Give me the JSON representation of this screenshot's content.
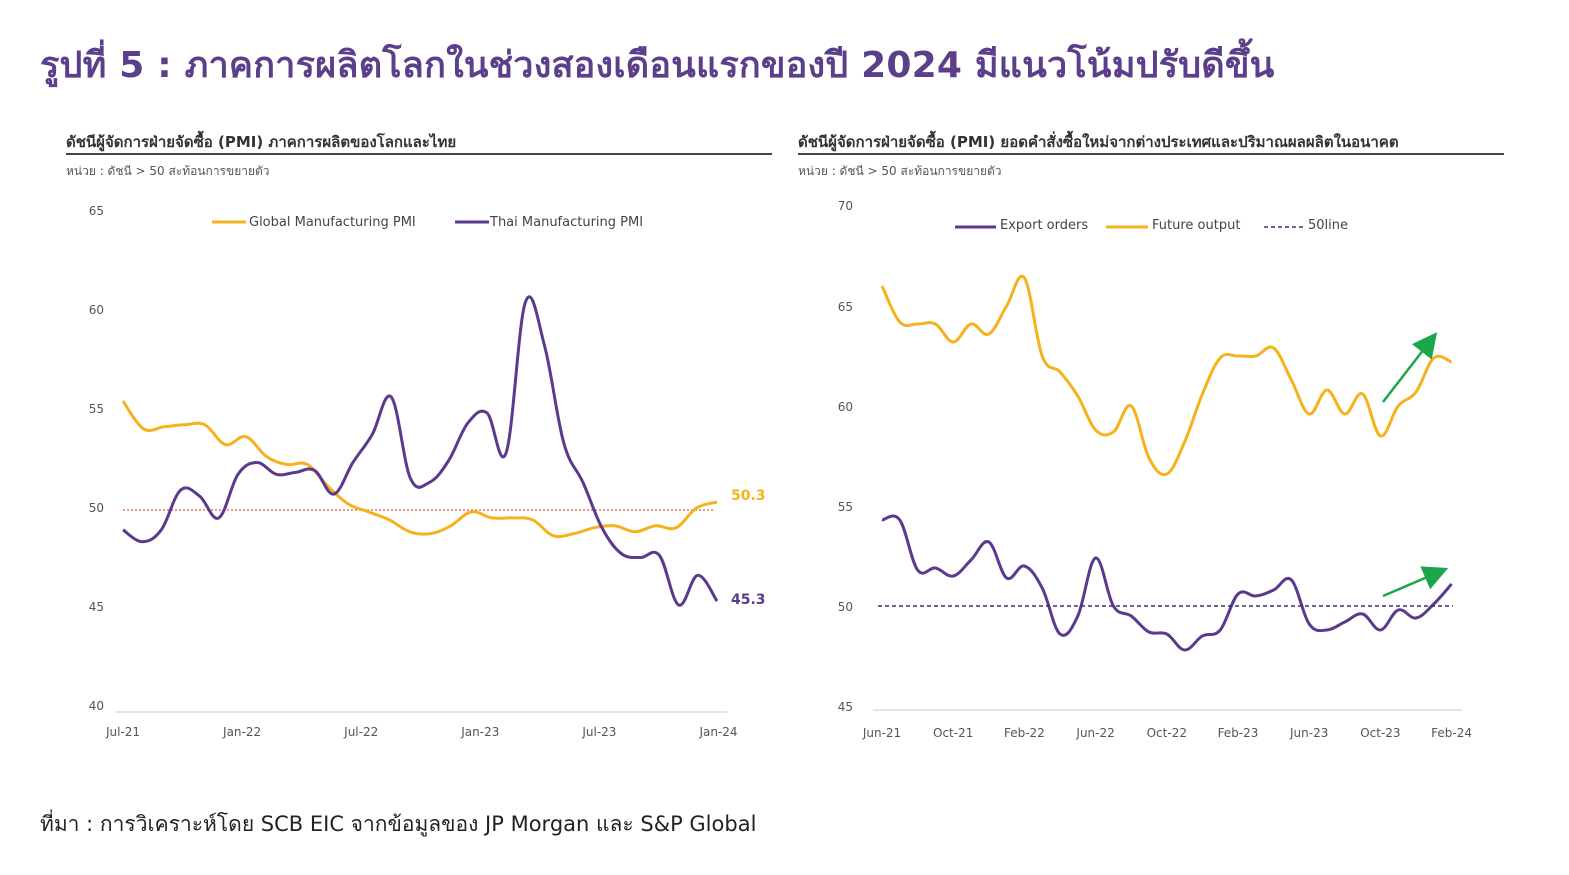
{
  "title": "รูปที่ 5 : ภาคการผลิตโลกในช่วงสองเดือนแรกของปี 2024 มีแนวโน้มปรับดีขึ้น",
  "source": "ที่มา : การวิเคราะห์โดย SCB EIC จากข้อมูลของ JP Morgan และ S&P Global",
  "colors": {
    "purple": "#5b3a8e",
    "orange": "#f5b21c",
    "red_dotted": "#e05a4f",
    "green_arrow": "#1aa64a",
    "title": "#5b3f8a"
  },
  "chart_data": [
    {
      "type": "line",
      "title": "ดัชนีผู้จัดการฝ่ายจัดซื้อ (PMI) ภาคการผลิตของโลกและไทย",
      "unit": "หน่วย : ดัชนี > 50 สะท้อนการขยายตัว",
      "ylim": [
        40,
        65
      ],
      "yticks": [
        "40",
        "45",
        "50",
        "55",
        "60",
        "65"
      ],
      "xtick_labels": [
        "Jul-21",
        "Jan-22",
        "Jul-22",
        "Jan-23",
        "Jul-23",
        "Jan-24"
      ],
      "xtick_index": [
        0,
        6,
        12,
        18,
        24,
        30
      ],
      "reference_line": 49.9,
      "series": [
        {
          "name": "Global Manufacturing PMI",
          "color": "orange",
          "values": [
            55.4,
            54.0,
            54.1,
            54.2,
            54.2,
            53.2,
            53.6,
            52.6,
            52.2,
            52.2,
            51.1,
            50.2,
            49.8,
            49.4,
            48.8,
            48.7,
            49.1,
            49.8,
            49.5,
            49.5,
            49.4,
            48.6,
            48.7,
            49.0,
            49.1,
            48.8,
            49.1,
            49.0,
            50.0,
            50.3
          ]
        },
        {
          "name": "Thai Manufacturing PMI",
          "color": "purple",
          "values": [
            48.9,
            48.3,
            48.9,
            50.9,
            50.6,
            49.5,
            51.7,
            52.3,
            51.7,
            51.8,
            51.9,
            50.7,
            52.3,
            53.7,
            55.6,
            51.5,
            51.3,
            52.4,
            54.3,
            54.8,
            52.8,
            60.4,
            58.2,
            53.3,
            51.3,
            49.0,
            47.7,
            47.5,
            47.6,
            45.1,
            46.6,
            45.3
          ]
        }
      ],
      "end_labels": [
        {
          "series": "Global Manufacturing PMI",
          "text": "50.3"
        },
        {
          "series": "Thai Manufacturing PMI",
          "text": "45.3"
        }
      ]
    },
    {
      "type": "line",
      "title": "ดัชนีผู้จัดการฝ่ายจัดซื้อ (PMI) ยอดคำสั่งซื้อใหม่จากต่างประเทศและปริมาณผลผลิตในอนาคต",
      "unit": "หน่วย : ดัชนี > 50 สะท้อนการขยายตัว",
      "ylim": [
        45,
        70
      ],
      "yticks": [
        "45",
        "50",
        "55",
        "60",
        "65",
        "70"
      ],
      "xtick_labels": [
        "Jun-21",
        "Oct-21",
        "Feb-22",
        "Jun-22",
        "Oct-22",
        "Feb-23",
        "Jun-23",
        "Oct-23",
        "Feb-24"
      ],
      "xtick_index": [
        0,
        4,
        8,
        12,
        16,
        20,
        24,
        28,
        32
      ],
      "series": [
        {
          "name": "Export orders",
          "color": "purple",
          "values": [
            54.3,
            54.3,
            51.8,
            51.9,
            51.5,
            52.3,
            53.2,
            51.4,
            52.0,
            50.9,
            48.6,
            49.5,
            52.4,
            50.0,
            49.5,
            48.7,
            48.6,
            47.8,
            48.5,
            48.8,
            50.6,
            50.5,
            50.8,
            51.3,
            49.1,
            48.8,
            49.2,
            49.6,
            48.8,
            49.8,
            49.4,
            50.1,
            51.1
          ]
        },
        {
          "name": "Future output",
          "color": "orange",
          "values": [
            66.0,
            64.2,
            64.1,
            64.1,
            63.2,
            64.1,
            63.6,
            65.0,
            66.4,
            62.5,
            61.7,
            60.5,
            58.8,
            58.7,
            60.0,
            57.4,
            56.6,
            58.2,
            60.6,
            62.4,
            62.5,
            62.5,
            62.9,
            61.3,
            59.6,
            60.8,
            59.6,
            60.6,
            58.5,
            60.0,
            60.7,
            62.4,
            62.2
          ]
        },
        {
          "name": "50line",
          "color": "purple",
          "style": "dashed",
          "values": [
            50,
            50
          ]
        }
      ]
    }
  ]
}
